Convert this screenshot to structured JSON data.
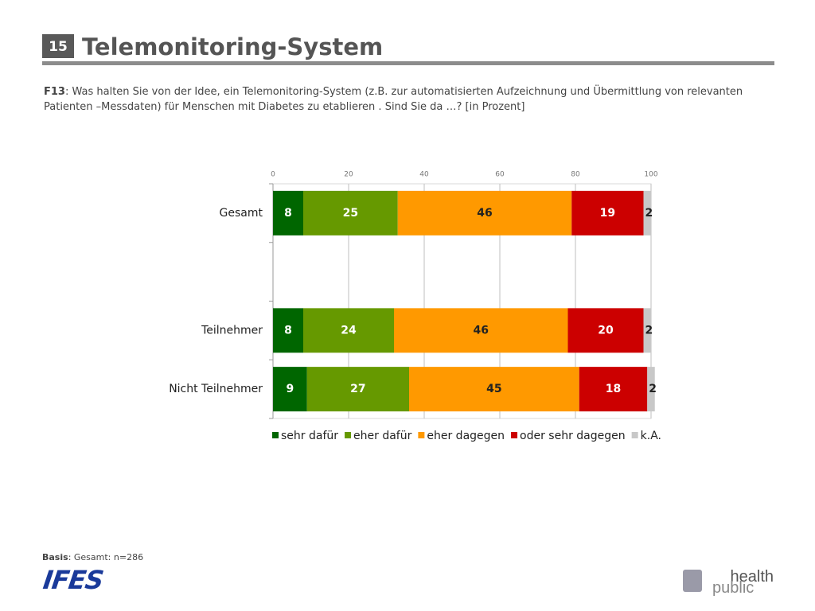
{
  "slide": {
    "number": "15",
    "title": "Telemonitoring-System",
    "question_label": "F13",
    "question_text": ": Was halten Sie von der Idee, ein Telemonitoring-System (z.B. zur automatisierten Aufzeichnung und Übermittlung von relevanten Patienten –Messdaten) für Menschen mit Diabetes zu etablieren . Sind Sie da …? [in Prozent]",
    "basis_label": "Basis",
    "basis_text": ": Gesamt: n=286",
    "logo_left": "IFES",
    "logo_right_top": "health",
    "logo_right_bottom": "public"
  },
  "chart_data": {
    "type": "stacked_bar",
    "orientation": "horizontal",
    "categories": [
      "Gesamt",
      null,
      "Teilnehmer",
      "Nicht Teilnehmer"
    ],
    "series": [
      {
        "name": "sehr dafür",
        "color": "#006600",
        "values": [
          8,
          null,
          8,
          9
        ]
      },
      {
        "name": "eher dafür",
        "color": "#669900",
        "values": [
          25,
          null,
          24,
          27
        ]
      },
      {
        "name": "eher dagegen",
        "color": "#ff9900",
        "values": [
          46,
          null,
          46,
          45
        ]
      },
      {
        "name": "oder sehr dagegen",
        "color": "#cc0000",
        "values": [
          19,
          null,
          20,
          18
        ]
      },
      {
        "name": "k.A.",
        "color": "#c8c8c8",
        "values": [
          2,
          null,
          2,
          2
        ]
      }
    ],
    "xlim": [
      0,
      100
    ],
    "xticks": [
      0,
      20,
      40,
      60,
      80,
      100
    ],
    "grid": true,
    "legend": "bottom"
  }
}
